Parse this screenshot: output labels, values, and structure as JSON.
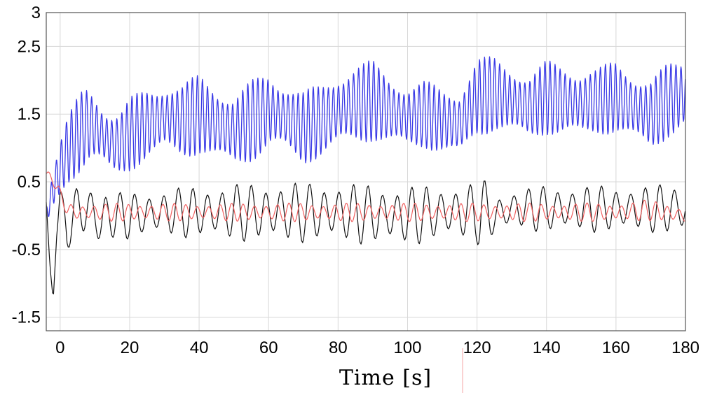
{
  "chart_data": {
    "type": "line",
    "title": "",
    "xlabel": "Time [s]",
    "ylabel": "",
    "xlim": [
      -4,
      180
    ],
    "ylim": [
      -1.7,
      3
    ],
    "x_ticks": [
      0,
      20,
      40,
      60,
      80,
      100,
      120,
      140,
      160,
      180
    ],
    "y_ticks": [
      3,
      2.5,
      1.5,
      0.5,
      -0.5,
      -1.5
    ],
    "grid": true,
    "legend": "none",
    "series": [
      {
        "color": "#3a3ae6",
        "x": [
          -4,
          -2,
          0,
          2,
          4,
          6,
          8,
          10,
          12,
          14,
          16,
          18,
          20,
          25,
          30,
          35,
          40,
          45,
          50,
          55,
          60,
          65,
          70,
          75,
          80,
          85,
          90,
          95,
          100,
          105,
          110,
          115,
          120,
          125,
          130,
          135,
          140,
          145,
          150,
          155,
          160,
          165,
          170,
          175,
          180
        ],
        "y": [
          0.0,
          0.4,
          0.7,
          0.95,
          1.1,
          1.25,
          1.35,
          1.3,
          1.2,
          1.1,
          1.05,
          1.1,
          1.2,
          1.35,
          1.45,
          1.4,
          1.5,
          1.35,
          1.25,
          1.4,
          1.55,
          1.45,
          1.3,
          1.4,
          1.55,
          1.65,
          1.7,
          1.55,
          1.45,
          1.5,
          1.4,
          1.35,
          1.75,
          1.8,
          1.7,
          1.6,
          1.75,
          1.7,
          1.65,
          1.7,
          1.75,
          1.6,
          1.5,
          1.7,
          1.8
        ],
        "amplitude": [
          0.2,
          0.35,
          0.45,
          0.5,
          0.55,
          0.6,
          0.6,
          0.55,
          0.5,
          0.5,
          0.5,
          0.5,
          0.55,
          0.55,
          0.55,
          0.55,
          0.6,
          0.6,
          0.55,
          0.6,
          0.6,
          0.55,
          0.55,
          0.55,
          0.6,
          0.6,
          0.6,
          0.55,
          0.5,
          0.5,
          0.5,
          0.55,
          0.6,
          0.55,
          0.55,
          0.5,
          0.55,
          0.55,
          0.55,
          0.5,
          0.55,
          0.55,
          0.55,
          0.55,
          0.55
        ],
        "period": 1.45
      },
      {
        "color": "#111111",
        "x": [
          -4,
          -3,
          -2,
          -1,
          0,
          2,
          4,
          6,
          8,
          10,
          12,
          14,
          16,
          20,
          30,
          40,
          60,
          80,
          95,
          100,
          110,
          120,
          121,
          125,
          130,
          140,
          150,
          160,
          170,
          178,
          180
        ],
        "y": [
          0.2,
          -0.7,
          -1.25,
          -0.3,
          0.3,
          -0.2,
          0.0,
          0.1,
          0.1,
          0.0,
          -0.1,
          0.0,
          0.0,
          0.0,
          0.05,
          0.05,
          0.05,
          0.05,
          0.0,
          0.0,
          0.05,
          0.05,
          0.05,
          0.0,
          0.1,
          0.1,
          0.1,
          0.1,
          0.1,
          0.1,
          0.1
        ],
        "amplitude": [
          0.0,
          0.0,
          0.0,
          0.0,
          0.1,
          0.3,
          0.4,
          0.45,
          0.45,
          0.45,
          0.5,
          0.4,
          0.35,
          0.35,
          0.35,
          0.4,
          0.45,
          0.45,
          0.45,
          0.45,
          0.4,
          0.45,
          0.6,
          0.3,
          0.3,
          0.35,
          0.35,
          0.35,
          0.35,
          0.4,
          0.4
        ],
        "period": 4.2
      },
      {
        "color": "#f06060",
        "x": [
          -4,
          -2,
          0,
          2,
          4,
          10,
          20,
          40,
          60,
          80,
          100,
          120,
          140,
          160,
          170,
          180
        ],
        "y": [
          0.6,
          0.55,
          0.3,
          0.1,
          0.05,
          0.05,
          0.05,
          0.05,
          0.05,
          0.05,
          0.05,
          0.05,
          0.05,
          0.05,
          0.08,
          0.0
        ],
        "amplitude": [
          0.05,
          0.1,
          0.1,
          0.1,
          0.13,
          0.13,
          0.14,
          0.13,
          0.14,
          0.14,
          0.14,
          0.14,
          0.14,
          0.14,
          0.16,
          0.12
        ],
        "period": 3.3
      }
    ]
  }
}
